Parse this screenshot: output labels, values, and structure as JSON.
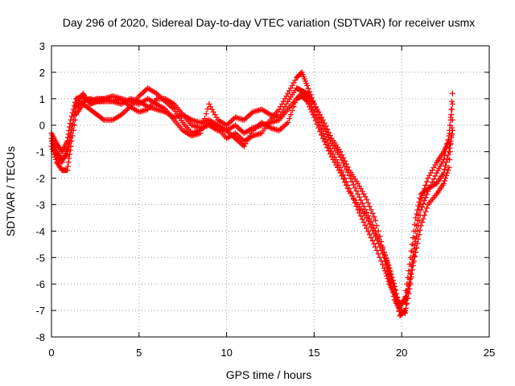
{
  "chart_data": {
    "type": "scatter",
    "title": "Day 296 of 2020, Sidereal Day-to-day VTEC variation (SDTVAR) for receiver usmx",
    "xlabel": "GPS time / hours",
    "ylabel": "SDTVAR / TECUs",
    "xlim": [
      0,
      25
    ],
    "ylim": [
      -8,
      3
    ],
    "xticks": [
      "0",
      "5",
      "10",
      "15",
      "20",
      "25"
    ],
    "yticks": [
      "3",
      "2",
      "1",
      "0",
      "-1",
      "-2",
      "-3",
      "-4",
      "-5",
      "-6",
      "-7",
      "-8"
    ],
    "grid": true,
    "marker": "plus",
    "color": "#ff0000",
    "series": [
      {
        "x": [
          0.0,
          0.3,
          0.6,
          0.9,
          1.1,
          1.4,
          1.8,
          2.2,
          2.6,
          3.0,
          3.5,
          4.0,
          4.5,
          5.0,
          5.5,
          6.0,
          6.5,
          7.0,
          7.5,
          8.0,
          8.5,
          9.0,
          9.5,
          10.0,
          10.5,
          11.0,
          11.5,
          12.0,
          12.5,
          13.0,
          13.5,
          14.0,
          14.3,
          14.6,
          15.0,
          15.5,
          16.0,
          16.5,
          17.0,
          17.5,
          18.0,
          18.5,
          19.0,
          19.3,
          19.6,
          19.9,
          20.2,
          20.5,
          20.8,
          21.1,
          21.5,
          22.0,
          22.4,
          22.7,
          22.9
        ],
        "y": [
          -0.5,
          -1.0,
          -1.3,
          -1.1,
          -0.3,
          0.7,
          0.9,
          1.0,
          0.9,
          1.0,
          0.9,
          0.8,
          1.0,
          0.9,
          0.7,
          0.6,
          0.5,
          0.3,
          0.4,
          0.2,
          0.1,
          0.2,
          0.0,
          -0.2,
          0.0,
          -0.3,
          -0.1,
          0.0,
          0.1,
          0.2,
          0.6,
          1.0,
          1.2,
          1.1,
          0.5,
          -0.3,
          -1.0,
          -1.6,
          -2.4,
          -3.2,
          -3.9,
          -4.6,
          -5.4,
          -6.0,
          -6.4,
          -6.8,
          -6.6,
          -5.8,
          -4.8,
          -3.8,
          -3.0,
          -2.6,
          -2.2,
          -1.6,
          0.2
        ]
      },
      {
        "x": [
          0.0,
          0.3,
          0.6,
          0.9,
          1.1,
          1.4,
          1.8,
          2.2,
          2.6,
          3.0,
          3.5,
          4.0,
          4.5,
          5.0,
          5.5,
          6.0,
          6.5,
          7.0,
          7.5,
          8.0,
          8.5,
          9.0,
          9.5,
          10.0,
          10.5,
          11.0,
          11.5,
          12.0,
          12.5,
          13.0,
          13.5,
          14.0,
          14.3,
          14.6,
          15.0,
          15.5,
          16.0,
          16.5,
          17.0,
          17.5,
          18.0,
          18.5,
          19.0,
          19.3,
          19.6,
          19.9,
          20.2,
          20.5,
          20.8,
          21.1,
          21.5,
          22.0,
          22.4,
          22.7,
          22.9
        ],
        "y": [
          -0.8,
          -1.4,
          -1.7,
          -1.7,
          -0.8,
          0.4,
          0.8,
          0.6,
          0.4,
          0.2,
          0.2,
          0.4,
          0.7,
          1.1,
          1.4,
          1.2,
          0.9,
          0.6,
          0.1,
          -0.3,
          -0.2,
          0.1,
          -0.1,
          -0.5,
          -0.3,
          -0.6,
          -0.4,
          -0.3,
          0.2,
          0.6,
          1.2,
          1.8,
          2.0,
          1.5,
          0.8,
          0.0,
          -0.7,
          -1.2,
          -1.9,
          -2.6,
          -3.3,
          -4.0,
          -4.8,
          -5.5,
          -6.2,
          -7.2,
          -7.0,
          -5.6,
          -4.0,
          -2.8,
          -2.0,
          -1.4,
          -1.0,
          -0.6,
          1.2
        ]
      },
      {
        "x": [
          0.0,
          0.3,
          0.6,
          0.9,
          1.1,
          1.4,
          1.8,
          2.2,
          2.6,
          3.0,
          3.5,
          4.0,
          4.5,
          5.0,
          5.5,
          6.0,
          6.5,
          7.0,
          7.5,
          8.0,
          8.5,
          9.0,
          9.5,
          10.0,
          10.5,
          11.0,
          11.5,
          12.0,
          12.5,
          13.0,
          13.5,
          14.0,
          14.3,
          14.6,
          15.0,
          15.5,
          16.0,
          16.5,
          17.0,
          17.5,
          18.0,
          18.5,
          19.0,
          19.3,
          19.6,
          19.9,
          20.2,
          20.5,
          20.8,
          21.1,
          21.5,
          22.0,
          22.4,
          22.7,
          22.9
        ],
        "y": [
          -0.3,
          -0.7,
          -1.0,
          -0.6,
          0.2,
          1.0,
          1.1,
          0.9,
          1.0,
          1.0,
          1.1,
          1.0,
          0.9,
          0.8,
          1.0,
          0.8,
          0.6,
          0.2,
          -0.2,
          -0.4,
          -0.3,
          0.8,
          0.2,
          0.0,
          0.3,
          0.2,
          0.5,
          0.6,
          0.4,
          0.3,
          0.9,
          1.4,
          1.3,
          1.2,
          0.8,
          0.2,
          -0.5,
          -1.0,
          -1.7,
          -2.2,
          -2.8,
          -3.6,
          -4.8,
          -5.4,
          -6.1,
          -6.9,
          -6.5,
          -5.0,
          -3.5,
          -2.6,
          -2.4,
          -2.2,
          -1.8,
          -1.0,
          -0.2
        ]
      },
      {
        "x": [
          0.0,
          0.3,
          0.6,
          0.9,
          1.1,
          1.4,
          1.8,
          2.2,
          2.6,
          3.0,
          3.5,
          4.0,
          4.5,
          5.0,
          5.5,
          6.0,
          6.5,
          7.0,
          7.5,
          8.0,
          8.5,
          9.0,
          9.5,
          10.0,
          10.5,
          11.0,
          11.5,
          12.0,
          12.5,
          13.0,
          13.5,
          14.0,
          14.3,
          14.6,
          15.0,
          15.5,
          16.0,
          16.5,
          17.0,
          17.5,
          18.0,
          18.5,
          19.0,
          19.3,
          19.6,
          19.9,
          20.2,
          20.5,
          20.8,
          21.1,
          21.5,
          22.0,
          22.4,
          22.7,
          22.9
        ],
        "y": [
          -0.6,
          -1.2,
          -1.4,
          -0.9,
          -0.4,
          0.8,
          1.2,
          0.8,
          0.9,
          0.9,
          0.9,
          1.0,
          0.7,
          0.5,
          0.6,
          1.0,
          1.0,
          0.8,
          0.4,
          0.0,
          -0.1,
          0.0,
          -0.2,
          -0.2,
          -0.5,
          -0.8,
          -0.2,
          0.1,
          -0.1,
          -0.2,
          0.1,
          1.0,
          1.1,
          0.9,
          0.3,
          -0.5,
          -1.2,
          -1.8,
          -2.5,
          -3.0,
          -3.5,
          -4.2,
          -5.0,
          -5.8,
          -6.6,
          -7.0,
          -7.1,
          -6.0,
          -4.4,
          -3.2,
          -2.5,
          -1.8,
          -1.3,
          -0.4,
          0.8
        ]
      }
    ]
  }
}
